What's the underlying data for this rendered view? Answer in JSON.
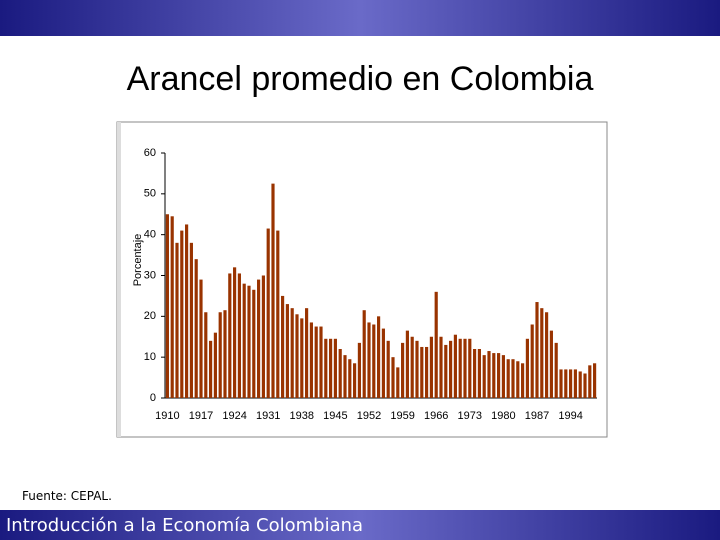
{
  "slide": {
    "title": "Arancel promedio en Colombia",
    "source": "Fuente: CEPAL.",
    "footer": "Introducción a la Economía Colombiana"
  },
  "chart_data": {
    "type": "bar",
    "y_label": "Porcentaje",
    "color": "#993300",
    "x": [
      1910,
      1911,
      1912,
      1913,
      1914,
      1915,
      1916,
      1917,
      1918,
      1919,
      1920,
      1921,
      1922,
      1923,
      1924,
      1925,
      1926,
      1927,
      1928,
      1929,
      1930,
      1931,
      1932,
      1933,
      1934,
      1935,
      1936,
      1937,
      1938,
      1939,
      1940,
      1941,
      1942,
      1943,
      1944,
      1945,
      1946,
      1947,
      1948,
      1949,
      1950,
      1951,
      1952,
      1953,
      1954,
      1955,
      1956,
      1957,
      1958,
      1959,
      1960,
      1961,
      1962,
      1963,
      1964,
      1965,
      1966,
      1967,
      1968,
      1969,
      1970,
      1971,
      1972,
      1973,
      1974,
      1975,
      1976,
      1977,
      1978,
      1979,
      1980,
      1981,
      1982,
      1983,
      1984,
      1985,
      1986,
      1987,
      1988,
      1989,
      1990,
      1991,
      1992,
      1993,
      1994,
      1995,
      1996,
      1997,
      1998,
      1999
    ],
    "values": [
      45,
      44.5,
      38,
      41,
      42.5,
      38,
      34,
      29,
      21,
      14,
      16,
      21,
      21.5,
      30.5,
      32,
      30.5,
      28,
      27.5,
      26.5,
      29,
      30,
      41.5,
      52.5,
      41,
      25,
      23,
      22,
      20.5,
      19.5,
      22,
      18.5,
      17.5,
      17.5,
      14.5,
      14.5,
      14.5,
      12,
      10.5,
      9.5,
      8.5,
      13.5,
      21.5,
      18.5,
      18,
      20,
      17,
      14,
      10,
      7.5,
      13.5,
      16.5,
      15,
      14,
      12.5,
      12.5,
      15,
      26,
      15,
      13,
      14,
      15.5,
      14.5,
      14.5,
      14.5,
      12,
      12,
      10.5,
      11.5,
      11,
      11,
      10.5,
      9.5,
      9.5,
      9,
      8.5,
      14.5,
      18,
      23.5,
      22,
      21,
      16.5,
      13.5,
      7,
      7,
      7,
      7,
      6.5,
      6,
      8,
      8.5
    ],
    "xlim": [
      1909.5,
      1999.5
    ],
    "xticks": [
      1910,
      1917,
      1924,
      1931,
      1938,
      1945,
      1952,
      1959,
      1966,
      1973,
      1980,
      1987,
      1994
    ],
    "ylim": [
      0,
      60
    ],
    "yticks": [
      0,
      10,
      20,
      30,
      40,
      50,
      60
    ]
  }
}
